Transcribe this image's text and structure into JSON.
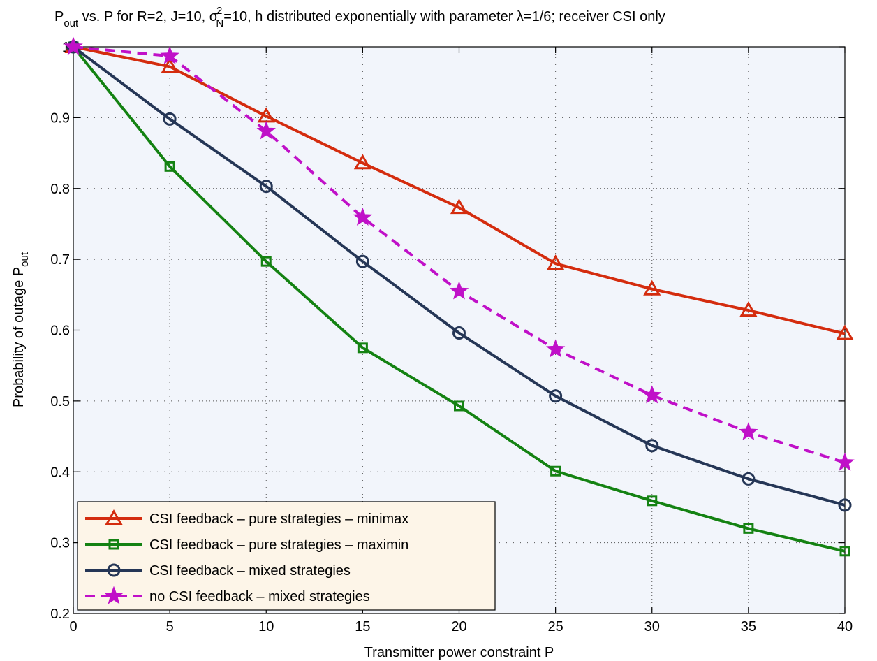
{
  "chart_data": {
    "type": "line",
    "title": {
      "p": "P",
      "out": "out",
      "part1": " vs. P for R=2, J=10, ",
      "sigma": "σ",
      "sup": "2",
      "sub": "N",
      "part2": "=10, h distributed exponentially with parameter ",
      "lambda": "λ",
      "part3": "=1/6; receiver CSI only"
    },
    "xlabel": "Transmitter power constraint P",
    "ylabel": {
      "main": "Probability of outage P",
      "sub": "out"
    },
    "xlim": [
      0,
      40
    ],
    "ylim": [
      0.2,
      1
    ],
    "xticks": [
      "0",
      "5",
      "10",
      "15",
      "20",
      "25",
      "30",
      "35",
      "40"
    ],
    "yticks": [
      "0.2",
      "0.3",
      "0.4",
      "0.5",
      "0.6",
      "0.7",
      "0.8",
      "0.9",
      "1"
    ],
    "grid": true,
    "background": "#f2f5fb",
    "legend_position": "bottom-left",
    "legend_background": "#fdf5e8",
    "x": [
      0,
      5,
      10,
      15,
      20,
      25,
      30,
      35,
      40
    ],
    "series": [
      {
        "name": "CSI feedback – pure strategies – minimax",
        "color": "#d42c0e",
        "marker": "triangle",
        "dashed": false,
        "values": [
          1.0,
          0.972,
          0.902,
          0.836,
          0.773,
          0.694,
          0.658,
          0.628,
          0.595
        ]
      },
      {
        "name": "CSI feedback – pure strategies – maximin",
        "color": "#148212",
        "marker": "square",
        "dashed": false,
        "values": [
          1.0,
          0.831,
          0.697,
          0.575,
          0.493,
          0.401,
          0.359,
          0.32,
          0.288
        ]
      },
      {
        "name": "CSI feedback – mixed strategies",
        "color": "#253656",
        "marker": "circle",
        "dashed": false,
        "values": [
          1.0,
          0.898,
          0.803,
          0.697,
          0.596,
          0.507,
          0.437,
          0.39,
          0.353
        ]
      },
      {
        "name": "no CSI feedback – mixed strategies",
        "color": "#c010c8",
        "marker": "star",
        "dashed": true,
        "values": [
          1.0,
          0.987,
          0.881,
          0.759,
          0.655,
          0.573,
          0.508,
          0.456,
          0.413
        ]
      }
    ]
  }
}
